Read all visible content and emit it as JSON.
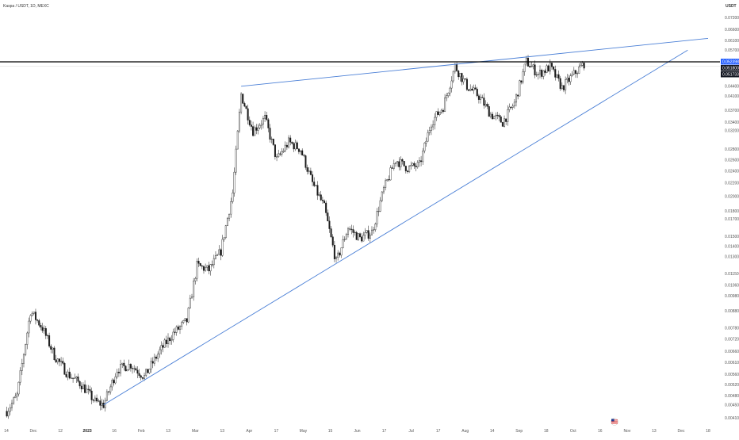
{
  "header": {
    "symbol_title": "Kaspa / USDT, 1D, MEXC",
    "quote_currency": "USDT"
  },
  "colors": {
    "background": "#ffffff",
    "candle": "#1a1a1a",
    "trendline": "#4a7fd6",
    "horizontal_level": "#000000",
    "price_tag_current": "#2962ff",
    "price_tag_dark": "#131722",
    "axis_text": "#555555",
    "faint_level": "#d9d9d9"
  },
  "price_tags": [
    {
      "label": "0.052398",
      "value": 0.052398,
      "color": "#2962ff"
    },
    {
      "label": "0.051800",
      "value": 0.0518,
      "color": "#131722"
    },
    {
      "label": "0.051733",
      "value": 0.051733,
      "color": "#131722"
    }
  ],
  "icons": {
    "flag": "us-flag-icon"
  },
  "chart_data": {
    "type": "candlestick",
    "title": "Kaspa / USDT, 1D, MEXC",
    "y_scale": "log",
    "ylim": [
      0.0041,
      0.072
    ],
    "y_ticks": [
      "0.072000",
      "0.066000",
      "0.061000",
      "0.057000",
      "0.052398",
      "0.048000",
      "0.044000",
      "0.041000",
      "0.037000",
      "0.034000",
      "0.032000",
      "0.028000",
      "0.026000",
      "0.024000",
      "0.022000",
      "0.020000",
      "0.018000",
      "0.017000",
      "0.015000",
      "0.014000",
      "0.013000",
      "0.011500",
      "0.010600",
      "0.009800",
      "0.008800",
      "0.007800",
      "0.007200",
      "0.006600",
      "0.006100",
      "0.005600",
      "0.005200",
      "0.004800",
      "0.004500",
      "0.004100"
    ],
    "x_ticks": [
      "14",
      "Dec",
      "12",
      "2023",
      "16",
      "Feb",
      "13",
      "Mar",
      "13",
      "Apr",
      "17",
      "May",
      "15",
      "Jun",
      "17",
      "Jul",
      "17",
      "Aug",
      "14",
      "Sep",
      "18",
      "Oct",
      "16",
      "Nov",
      "13",
      "Dec",
      "18"
    ],
    "x_ticks_bold": [
      "2023"
    ],
    "horizontal_levels": [
      0.052398
    ],
    "trendlines": [
      {
        "name": "resistance",
        "from": {
          "date": "2023-04-01",
          "price": 0.044
        },
        "to": {
          "date": "2024-01-01",
          "price": 0.062
        }
      },
      {
        "name": "support",
        "from": {
          "date": "2023-01-10",
          "price": 0.0045
        },
        "to": {
          "date": "2023-12-20",
          "price": 0.057
        }
      }
    ],
    "series": [
      {
        "name": "",
        "ohlc_path": [
          {
            "date": "2022-11-14",
            "price": 0.0043
          },
          {
            "date": "2022-11-20",
            "price": 0.0048
          },
          {
            "date": "2022-11-28",
            "price": 0.0088
          },
          {
            "date": "2022-12-05",
            "price": 0.0078
          },
          {
            "date": "2022-12-12",
            "price": 0.0064
          },
          {
            "date": "2022-12-20",
            "price": 0.0056
          },
          {
            "date": "2022-12-28",
            "price": 0.0052
          },
          {
            "date": "2023-01-05",
            "price": 0.0046
          },
          {
            "date": "2023-01-10",
            "price": 0.0045
          },
          {
            "date": "2023-01-18",
            "price": 0.0058
          },
          {
            "date": "2023-01-26",
            "price": 0.006
          },
          {
            "date": "2023-02-03",
            "price": 0.0055
          },
          {
            "date": "2023-02-12",
            "price": 0.0066
          },
          {
            "date": "2023-02-20",
            "price": 0.0075
          },
          {
            "date": "2023-02-28",
            "price": 0.0082
          },
          {
            "date": "2023-03-06",
            "price": 0.0122
          },
          {
            "date": "2023-03-13",
            "price": 0.0118
          },
          {
            "date": "2023-03-20",
            "price": 0.0135
          },
          {
            "date": "2023-03-27",
            "price": 0.0205
          },
          {
            "date": "2023-04-01",
            "price": 0.0415
          },
          {
            "date": "2023-04-08",
            "price": 0.032
          },
          {
            "date": "2023-04-15",
            "price": 0.035
          },
          {
            "date": "2023-04-22",
            "price": 0.026
          },
          {
            "date": "2023-04-29",
            "price": 0.0295
          },
          {
            "date": "2023-05-06",
            "price": 0.028
          },
          {
            "date": "2023-05-13",
            "price": 0.022
          },
          {
            "date": "2023-05-20",
            "price": 0.0185
          },
          {
            "date": "2023-05-27",
            "price": 0.0125
          },
          {
            "date": "2023-06-03",
            "price": 0.016
          },
          {
            "date": "2023-06-10",
            "price": 0.0148
          },
          {
            "date": "2023-06-17",
            "price": 0.0155
          },
          {
            "date": "2023-06-24",
            "price": 0.021
          },
          {
            "date": "2023-07-01",
            "price": 0.026
          },
          {
            "date": "2023-07-08",
            "price": 0.0245
          },
          {
            "date": "2023-07-15",
            "price": 0.025
          },
          {
            "date": "2023-07-22",
            "price": 0.034
          },
          {
            "date": "2023-07-29",
            "price": 0.038
          },
          {
            "date": "2023-08-05",
            "price": 0.0508
          },
          {
            "date": "2023-08-12",
            "price": 0.044
          },
          {
            "date": "2023-08-19",
            "price": 0.041
          },
          {
            "date": "2023-08-26",
            "price": 0.036
          },
          {
            "date": "2023-09-02",
            "price": 0.034
          },
          {
            "date": "2023-09-09",
            "price": 0.039
          },
          {
            "date": "2023-09-16",
            "price": 0.0525
          },
          {
            "date": "2023-09-23",
            "price": 0.048
          },
          {
            "date": "2023-09-30",
            "price": 0.0505
          },
          {
            "date": "2023-10-07",
            "price": 0.0435
          },
          {
            "date": "2023-10-14",
            "price": 0.048
          },
          {
            "date": "2023-10-20",
            "price": 0.0518
          }
        ]
      }
    ]
  }
}
